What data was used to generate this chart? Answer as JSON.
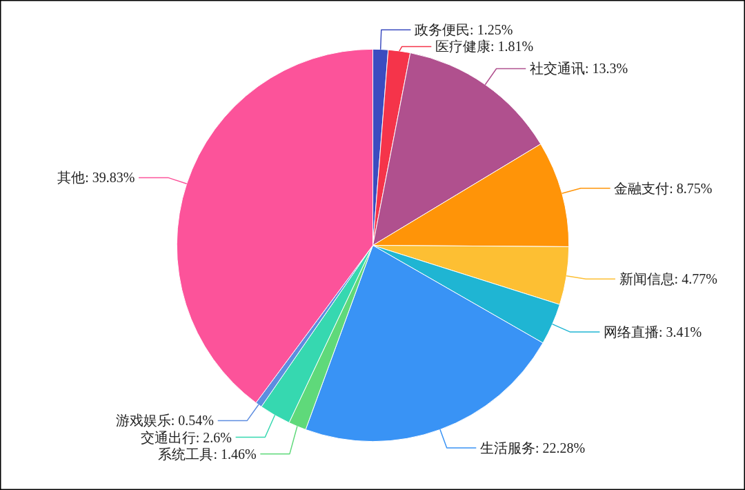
{
  "chart_data": {
    "type": "pie",
    "categories": [
      "政务便民",
      "医疗健康",
      "社交通讯",
      "金融支付",
      "新闻信息",
      "网络直播",
      "生活服务",
      "系统工具",
      "交通出行",
      "游戏娱乐",
      "其他"
    ],
    "values": [
      1.25,
      1.81,
      13.3,
      8.75,
      4.77,
      3.41,
      22.28,
      1.46,
      2.6,
      0.54,
      39.83
    ],
    "value_labels": [
      "1.25%",
      "1.81%",
      "13.3%",
      "8.75%",
      "4.77%",
      "3.41%",
      "22.28%",
      "1.46%",
      "2.6%",
      "0.54%",
      "39.83%"
    ],
    "colors": [
      "#3b4cc0",
      "#f5344a",
      "#b0508e",
      "#ff9408",
      "#fdbf33",
      "#1fb5d3",
      "#3993f5",
      "#5fd97a",
      "#36d8b0",
      "#5d8de0",
      "#fc539a"
    ]
  }
}
